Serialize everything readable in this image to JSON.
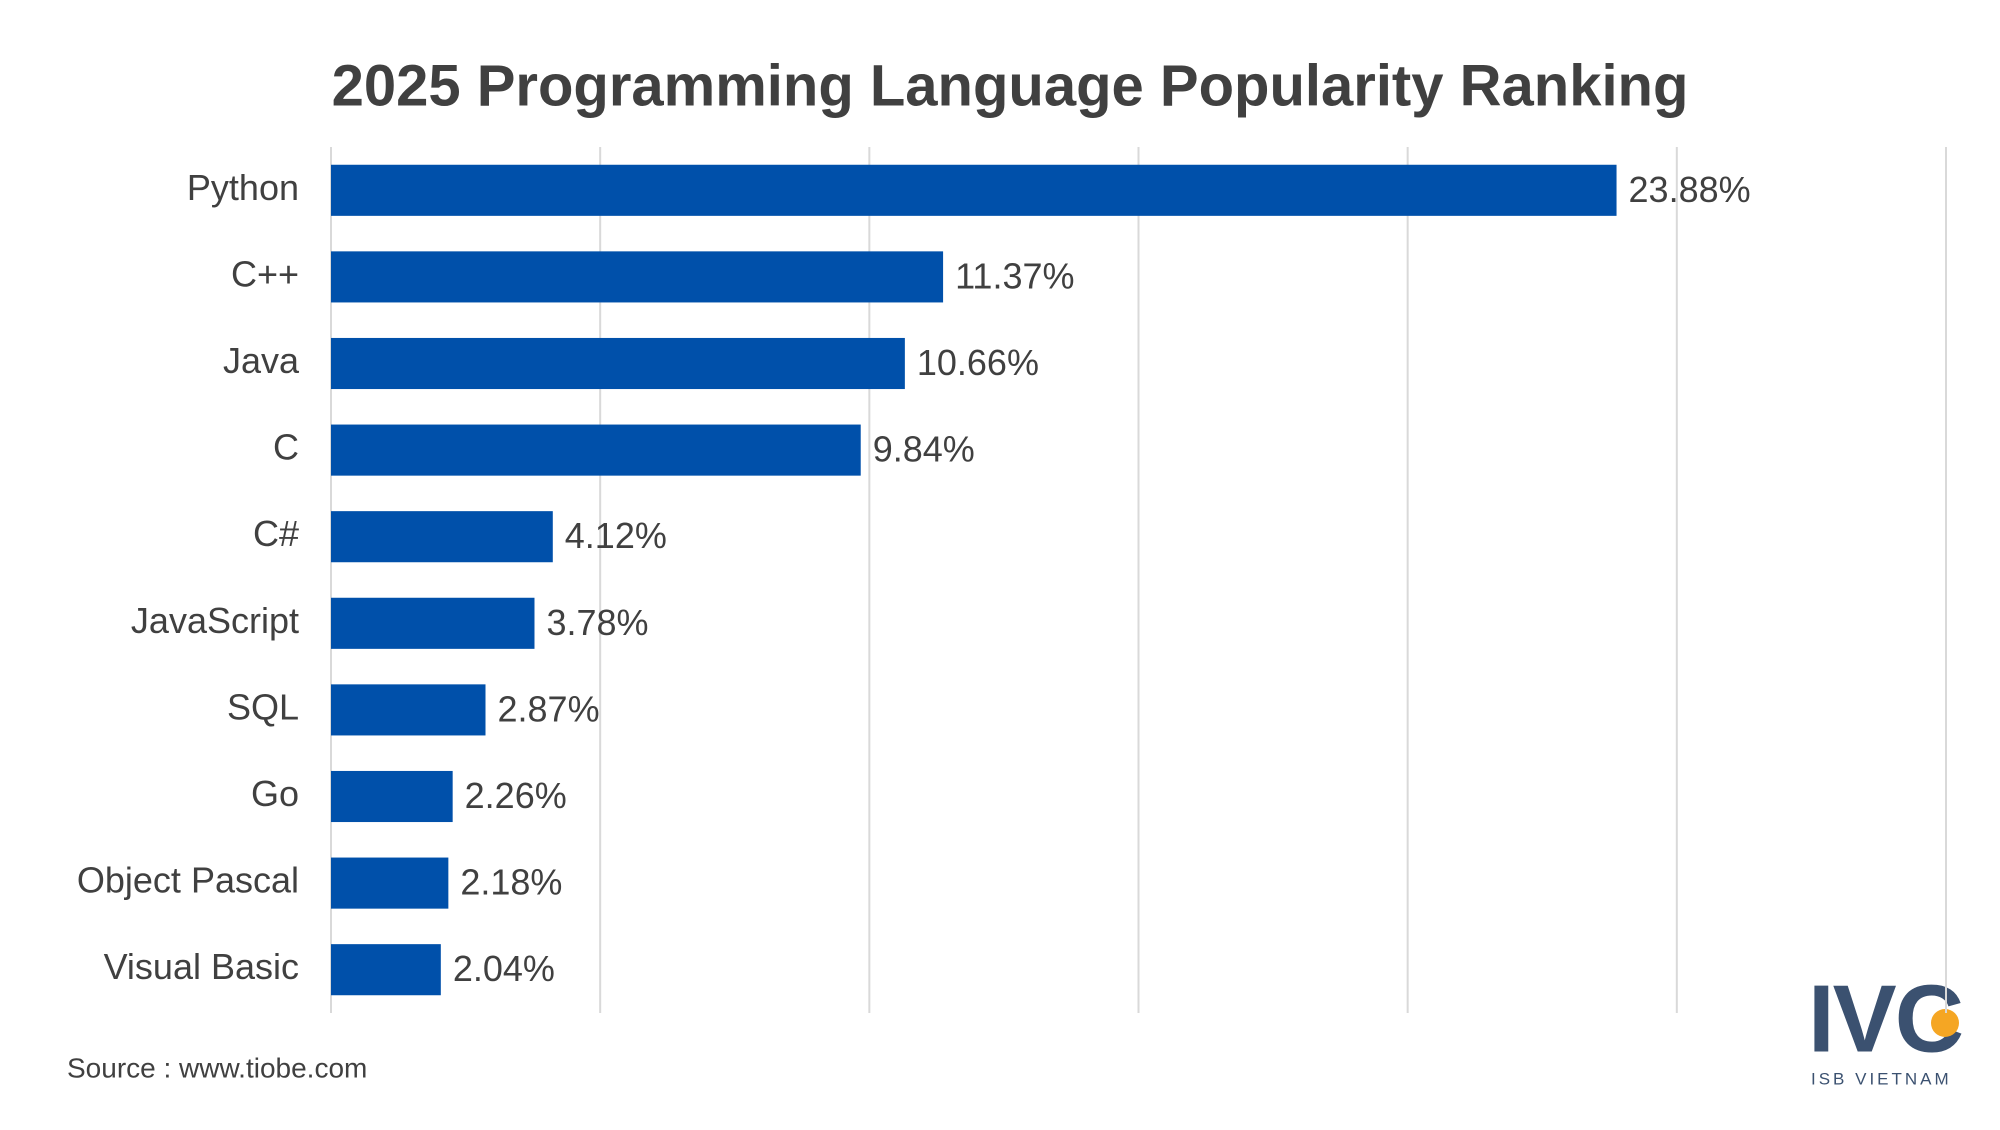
{
  "chart_data": {
    "type": "hbar",
    "title": "2025 Programming Language Popularity Ranking",
    "categories": [
      "Python",
      "C++",
      "Java",
      "C",
      "C#",
      "JavaScript",
      "SQL",
      "Go",
      "Object Pascal",
      "Visual Basic"
    ],
    "values": [
      23.88,
      11.37,
      10.66,
      9.84,
      4.12,
      3.78,
      2.87,
      2.26,
      2.18,
      2.04
    ],
    "value_labels": [
      "23.88%",
      "11.37%",
      "10.66%",
      "9.84%",
      "4.12%",
      "3.78%",
      "2.87%",
      "2.26%",
      "2.18%",
      "2.04%"
    ],
    "color": "#0050aa",
    "xlim": [
      0,
      30
    ],
    "xticks": [
      0,
      5,
      10,
      15,
      20,
      25,
      30
    ],
    "grid": true,
    "source": "Source : www.tiobe.com"
  },
  "logo": {
    "text": "IVC",
    "subtext": "ISB VIETNAM"
  }
}
